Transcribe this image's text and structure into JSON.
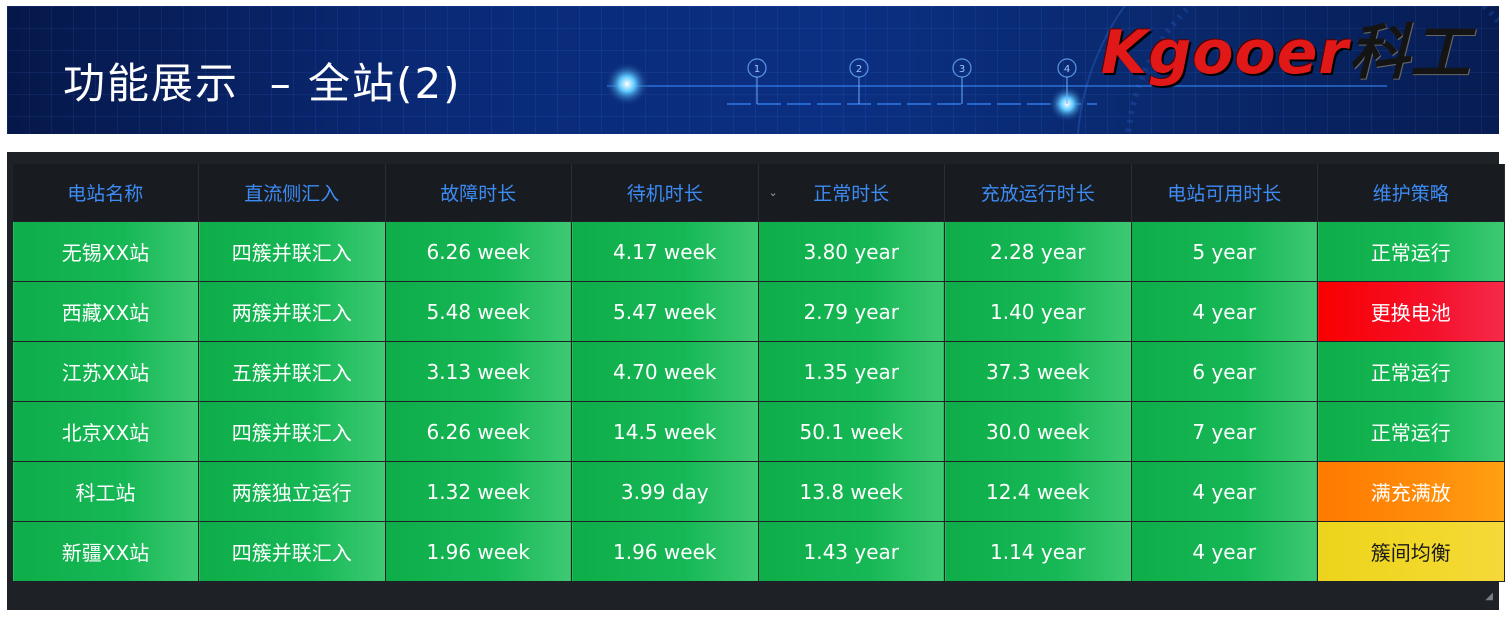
{
  "banner": {
    "title": "功能展示  – 全站(2)",
    "logo_latin": "Kgooer",
    "logo_cjk": "科工",
    "step_numbers": [
      "1",
      "2",
      "3",
      "4"
    ]
  },
  "table": {
    "columns": [
      "电站名称",
      "直流侧汇入",
      "故障时长",
      "待机时长",
      "正常时长",
      "充放运行时长",
      "电站可用时长",
      "维护策略"
    ],
    "rows": [
      {
        "name": "无锡XX站",
        "dc": "四簇并联汇入",
        "fault": "6.26 week",
        "standby": "4.17 week",
        "normal": "3.80 year",
        "run": "2.28 year",
        "avail": "5 year",
        "strategy": "正常运行",
        "strategy_status": "green"
      },
      {
        "name": "西藏XX站",
        "dc": "两簇并联汇入",
        "fault": "5.48 week",
        "standby": "5.47 week",
        "normal": "2.79 year",
        "run": "1.40 year",
        "avail": "4 year",
        "strategy": "更换电池",
        "strategy_status": "red"
      },
      {
        "name": "江苏XX站",
        "dc": "五簇并联汇入",
        "fault": "3.13 week",
        "standby": "4.70 week",
        "normal": "1.35 year",
        "run": "37.3 week",
        "avail": "6 year",
        "strategy": "正常运行",
        "strategy_status": "green"
      },
      {
        "name": "北京XX站",
        "dc": "四簇并联汇入",
        "fault": "6.26 week",
        "standby": "14.5 week",
        "normal": "50.1 week",
        "run": "30.0 week",
        "avail": "7 year",
        "strategy": "正常运行",
        "strategy_status": "green"
      },
      {
        "name": "科工站",
        "dc": "两簇独立运行",
        "fault": "1.32 week",
        "standby": "3.99 day",
        "normal": "13.8 week",
        "run": "12.4 week",
        "avail": "4 year",
        "strategy": "满充满放",
        "strategy_status": "orange"
      },
      {
        "name": "新疆XX站",
        "dc": "四簇并联汇入",
        "fault": "1.96 week",
        "standby": "1.96 week",
        "normal": "1.43 year",
        "run": "1.14 year",
        "avail": "4 year",
        "strategy": "簇间均衡",
        "strategy_status": "yellow"
      }
    ]
  },
  "colors": {
    "header_text": "#3d8bf5",
    "panel_bg": "#1e2126",
    "green": "#16b855",
    "red": "#f80000",
    "orange": "#ff8d0a",
    "yellow": "#f2d82a"
  },
  "icons": {
    "sort": "chevron-down-icon",
    "resize": "resize-handle-icon"
  }
}
